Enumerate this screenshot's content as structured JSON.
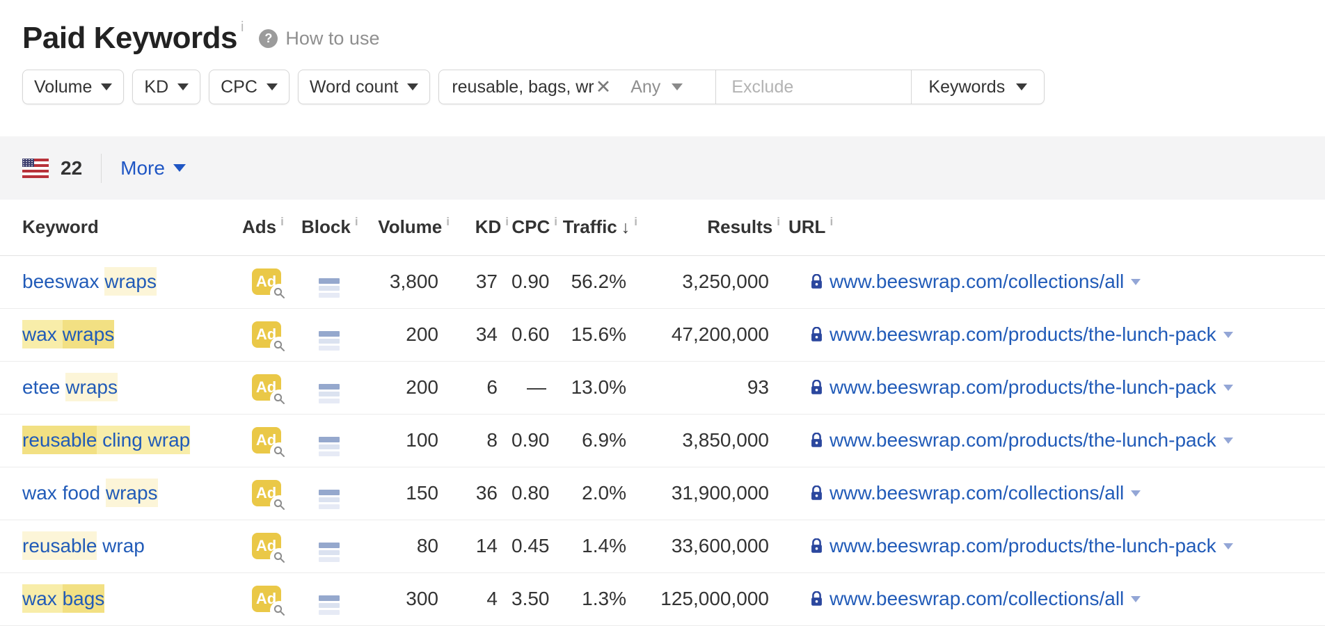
{
  "header": {
    "title": "Paid Keywords",
    "title_info": "i",
    "help_label": "How to use"
  },
  "filters": {
    "volume_label": "Volume",
    "kd_label": "KD",
    "cpc_label": "CPC",
    "word_count_label": "Word count",
    "include_value": "reusable, bags, wr",
    "match_mode": "Any",
    "exclude_placeholder": "Exclude",
    "search_in_label": "Keywords"
  },
  "toolbar": {
    "country": "United States flag",
    "count": "22",
    "more_label": "More"
  },
  "table": {
    "ad_label": "Ad",
    "headers": [
      {
        "label": "Keyword",
        "info": false,
        "align": "left"
      },
      {
        "label": "Ads",
        "info": true,
        "align": "left"
      },
      {
        "label": "Block",
        "info": true,
        "align": "left"
      },
      {
        "label": "Volume",
        "info": true,
        "align": "right"
      },
      {
        "label": "KD",
        "info": true,
        "align": "right"
      },
      {
        "label": "CPC",
        "info": true,
        "align": "right"
      },
      {
        "label": "Traffic",
        "info": true,
        "align": "right",
        "sorted": "desc"
      },
      {
        "label": "Results",
        "info": true,
        "align": "right"
      },
      {
        "label": "URL",
        "info": true,
        "align": "left"
      }
    ],
    "rows": [
      {
        "keyword": [
          {
            "text": "beeswax ",
            "hl": "none"
          },
          {
            "text": "wraps",
            "hl": "l1"
          }
        ],
        "volume": "3,800",
        "kd": "37",
        "cpc": "0.90",
        "traffic": "56.2%",
        "results": "3,250,000",
        "url": "www.beeswrap.com/collections/all"
      },
      {
        "keyword": [
          {
            "text": "wax ",
            "hl": "l2"
          },
          {
            "text": "wraps",
            "hl": "l3"
          }
        ],
        "volume": "200",
        "kd": "34",
        "cpc": "0.60",
        "traffic": "15.6%",
        "results": "47,200,000",
        "url": "www.beeswrap.com/products/the-lunch-pack"
      },
      {
        "keyword": [
          {
            "text": "etee ",
            "hl": "none"
          },
          {
            "text": "wraps",
            "hl": "l1"
          }
        ],
        "volume": "200",
        "kd": "6",
        "cpc": "—",
        "traffic": "13.0%",
        "results": "93",
        "url": "www.beeswrap.com/products/the-lunch-pack"
      },
      {
        "keyword": [
          {
            "text": "reusable",
            "hl": "l3"
          },
          {
            "text": " cling wrap",
            "hl": "l2"
          }
        ],
        "volume": "100",
        "kd": "8",
        "cpc": "0.90",
        "traffic": "6.9%",
        "results": "3,850,000",
        "url": "www.beeswrap.com/products/the-lunch-pack"
      },
      {
        "keyword": [
          {
            "text": "wax food ",
            "hl": "none"
          },
          {
            "text": "wraps",
            "hl": "l1"
          }
        ],
        "volume": "150",
        "kd": "36",
        "cpc": "0.80",
        "traffic": "2.0%",
        "results": "31,900,000",
        "url": "www.beeswrap.com/collections/all"
      },
      {
        "keyword": [
          {
            "text": "reusable",
            "hl": "l1"
          },
          {
            "text": " wrap",
            "hl": "none"
          }
        ],
        "volume": "80",
        "kd": "14",
        "cpc": "0.45",
        "traffic": "1.4%",
        "results": "33,600,000",
        "url": "www.beeswrap.com/products/the-lunch-pack"
      },
      {
        "keyword": [
          {
            "text": "wax ",
            "hl": "l2"
          },
          {
            "text": "bags",
            "hl": "l3"
          }
        ],
        "volume": "300",
        "kd": "4",
        "cpc": "3.50",
        "traffic": "1.3%",
        "results": "125,000,000",
        "url": "www.beeswrap.com/collections/all"
      }
    ]
  },
  "colors": {
    "link": "#215bb8",
    "gold": "#eac847",
    "hl1": "#fcf5d8",
    "hl2": "#f8eda9",
    "hl3": "#f2e083",
    "lock": "#2b479e",
    "band": "#f4f4f5"
  }
}
